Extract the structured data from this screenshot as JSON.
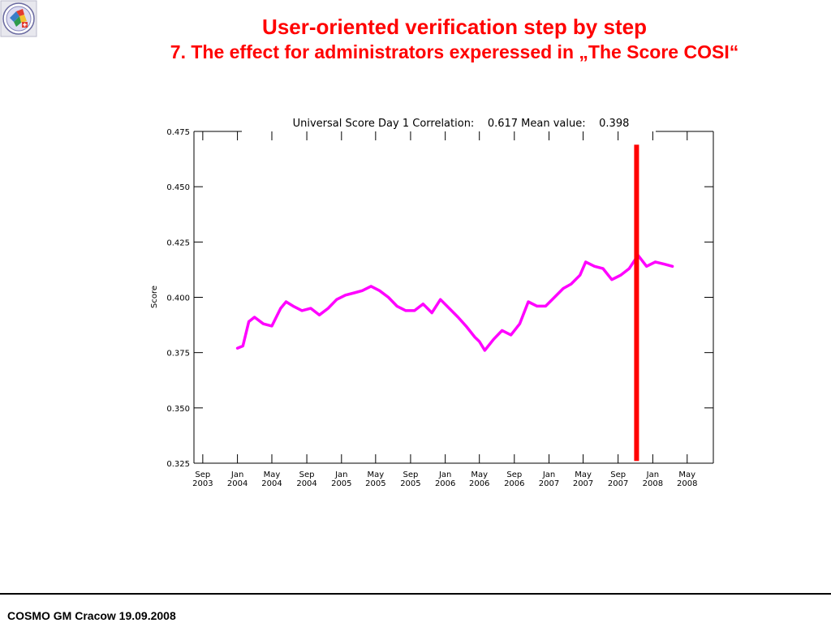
{
  "slide": {
    "title_line_1": "User-oriented verification step by step",
    "title_line_2": "7. The  effect for administrators experessed in „The Score COSI“",
    "footer": "COSMO GM Cracow 19.09.2008",
    "logo_icon": "cosmo-logo-icon",
    "title_color": "#ff0000"
  },
  "chart_data": {
    "type": "line",
    "title": "Universal Score Day 1 Correlation:    0.617 Mean value:    0.398",
    "xlabel": "",
    "ylabel": "Score",
    "ylim": [
      0.325,
      0.475
    ],
    "yticks": [
      0.325,
      0.35,
      0.375,
      0.4,
      0.425,
      0.45,
      0.475
    ],
    "ytick_labels": [
      "0.325",
      "0.350",
      "0.375",
      "0.400",
      "0.425",
      "0.450",
      "0.475"
    ],
    "xlim": [
      "2003-08-01",
      "2008-08-01"
    ],
    "xticks": [
      {
        "date": "2003-09-01",
        "month": "Sep",
        "year": "2003"
      },
      {
        "date": "2004-01-01",
        "month": "Jan",
        "year": "2004"
      },
      {
        "date": "2004-05-01",
        "month": "May",
        "year": "2004"
      },
      {
        "date": "2004-09-01",
        "month": "Sep",
        "year": "2004"
      },
      {
        "date": "2005-01-01",
        "month": "Jan",
        "year": "2005"
      },
      {
        "date": "2005-05-01",
        "month": "May",
        "year": "2005"
      },
      {
        "date": "2005-09-01",
        "month": "Sep",
        "year": "2005"
      },
      {
        "date": "2006-01-01",
        "month": "Jan",
        "year": "2006"
      },
      {
        "date": "2006-05-01",
        "month": "May",
        "year": "2006"
      },
      {
        "date": "2006-09-01",
        "month": "Sep",
        "year": "2006"
      },
      {
        "date": "2007-01-01",
        "month": "Jan",
        "year": "2007"
      },
      {
        "date": "2007-05-01",
        "month": "May",
        "year": "2007"
      },
      {
        "date": "2007-09-01",
        "month": "Sep",
        "year": "2007"
      },
      {
        "date": "2008-01-01",
        "month": "Jan",
        "year": "2008"
      },
      {
        "date": "2008-05-01",
        "month": "May",
        "year": "2008"
      }
    ],
    "grid": false,
    "series": [
      {
        "color": "#ff00ff",
        "x": [
          "2004-01-01",
          "2004-01-20",
          "2004-02-10",
          "2004-03-01",
          "2004-04-01",
          "2004-05-01",
          "2004-06-01",
          "2004-06-20",
          "2004-07-15",
          "2004-08-15",
          "2004-09-15",
          "2004-10-15",
          "2004-11-15",
          "2004-12-15",
          "2005-01-15",
          "2005-02-15",
          "2005-03-15",
          "2005-04-15",
          "2005-05-15",
          "2005-06-15",
          "2005-07-15",
          "2005-08-15",
          "2005-09-15",
          "2005-10-15",
          "2005-11-15",
          "2005-12-15",
          "2006-01-15",
          "2006-02-15",
          "2006-03-15",
          "2006-04-15",
          "2006-05-01",
          "2006-05-20",
          "2006-06-20",
          "2006-07-20",
          "2006-08-20",
          "2006-09-20",
          "2006-10-20",
          "2006-11-20",
          "2006-12-20",
          "2007-01-20",
          "2007-02-20",
          "2007-03-20",
          "2007-04-20",
          "2007-05-10",
          "2007-06-10",
          "2007-07-10",
          "2007-08-10",
          "2007-09-10",
          "2007-10-10",
          "2007-11-10",
          "2007-12-10",
          "2008-01-10",
          "2008-02-10",
          "2008-03-10"
        ],
        "y": [
          0.377,
          0.378,
          0.389,
          0.391,
          0.388,
          0.387,
          0.395,
          0.398,
          0.396,
          0.394,
          0.395,
          0.392,
          0.395,
          0.399,
          0.401,
          0.402,
          0.403,
          0.405,
          0.403,
          0.4,
          0.396,
          0.394,
          0.394,
          0.397,
          0.393,
          0.399,
          0.395,
          0.391,
          0.387,
          0.382,
          0.38,
          0.376,
          0.381,
          0.385,
          0.383,
          0.388,
          0.398,
          0.396,
          0.396,
          0.4,
          0.404,
          0.406,
          0.41,
          0.416,
          0.414,
          0.413,
          0.408,
          0.41,
          0.413,
          0.419,
          0.414,
          0.416,
          0.415,
          0.414
        ]
      }
    ],
    "annotations": [
      {
        "type": "vertical-line",
        "x": "2007-11-05",
        "y_range": [
          0.326,
          0.469
        ],
        "color": "#ff0000"
      }
    ]
  }
}
